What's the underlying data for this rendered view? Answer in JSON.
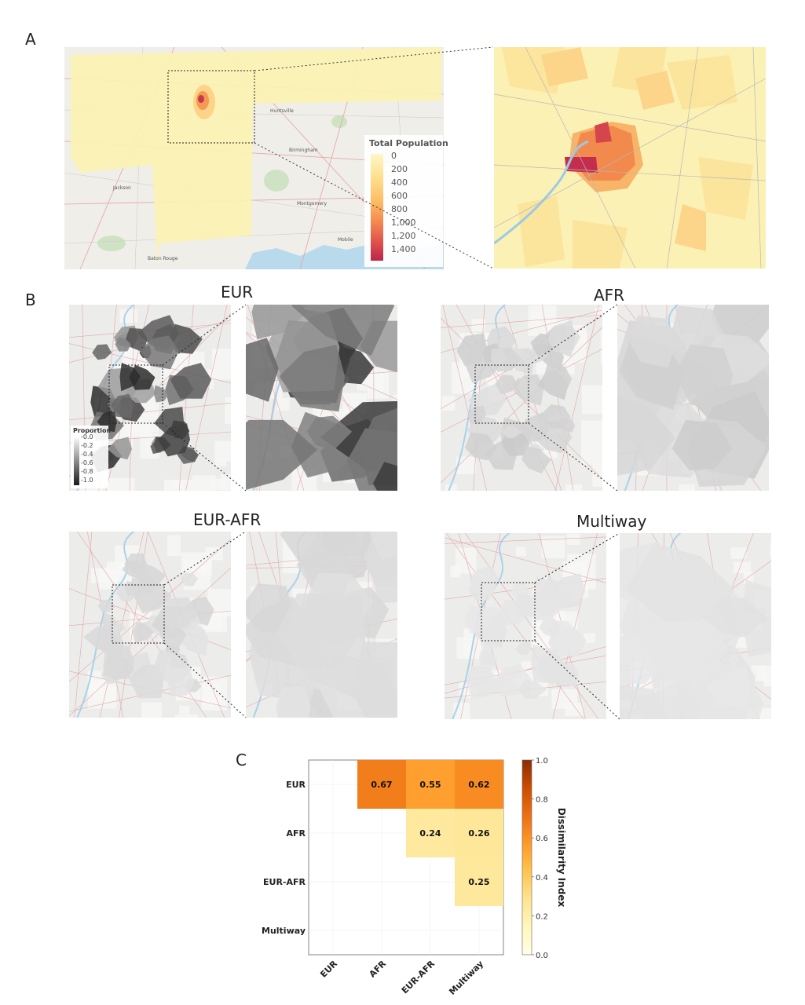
{
  "panels": {
    "a": {
      "letter": "A",
      "legend": {
        "title": "Total Population",
        "ticks": [
          "0",
          "200",
          "400",
          "600",
          "800",
          "1,000",
          "1,200",
          "1,400"
        ]
      },
      "map_labels": [
        "Huntsville",
        "Birmingham",
        "Montgomery",
        "Baton Rouge",
        "Jackson",
        "Mobile"
      ]
    },
    "b": {
      "letter": "B",
      "maps": [
        {
          "title": "EUR",
          "level": 0.75
        },
        {
          "title": "AFR",
          "level": 0.12
        },
        {
          "title": "EUR-AFR",
          "level": 0.08
        },
        {
          "title": "Multiway",
          "level": 0.03
        }
      ],
      "legend": {
        "title": "Proportion",
        "ticks": [
          "0.0",
          "0.2",
          "0.4",
          "0.6",
          "0.8",
          "1.0"
        ]
      }
    },
    "c": {
      "letter": "C",
      "chart_data": {
        "type": "heatmap",
        "rows": [
          "EUR",
          "AFR",
          "EUR-AFR",
          "Multiway"
        ],
        "columns": [
          "EUR",
          "AFR",
          "EUR-AFR",
          "Multiway"
        ],
        "cells": [
          {
            "row": "EUR",
            "col": "AFR",
            "value": 0.67,
            "label": "0.67"
          },
          {
            "row": "EUR",
            "col": "EUR-AFR",
            "value": 0.55,
            "label": "0.55"
          },
          {
            "row": "EUR",
            "col": "Multiway",
            "value": 0.62,
            "label": "0.62"
          },
          {
            "row": "AFR",
            "col": "EUR-AFR",
            "value": 0.24,
            "label": "0.24"
          },
          {
            "row": "AFR",
            "col": "Multiway",
            "value": 0.26,
            "label": "0.26"
          },
          {
            "row": "EUR-AFR",
            "col": "Multiway",
            "value": 0.25,
            "label": "0.25"
          }
        ],
        "colorbar": {
          "label": "Dissimilarity Index",
          "range": [
            0.0,
            1.0
          ],
          "ticks": [
            "0.0",
            "0.2",
            "0.4",
            "0.6",
            "0.8",
            "1.0"
          ]
        },
        "colormap": [
          "#ffffe5",
          "#fff7bc",
          "#fee391",
          "#fec44f",
          "#fe9929",
          "#ec7014",
          "#cc4c02",
          "#8c2d04"
        ]
      }
    }
  }
}
